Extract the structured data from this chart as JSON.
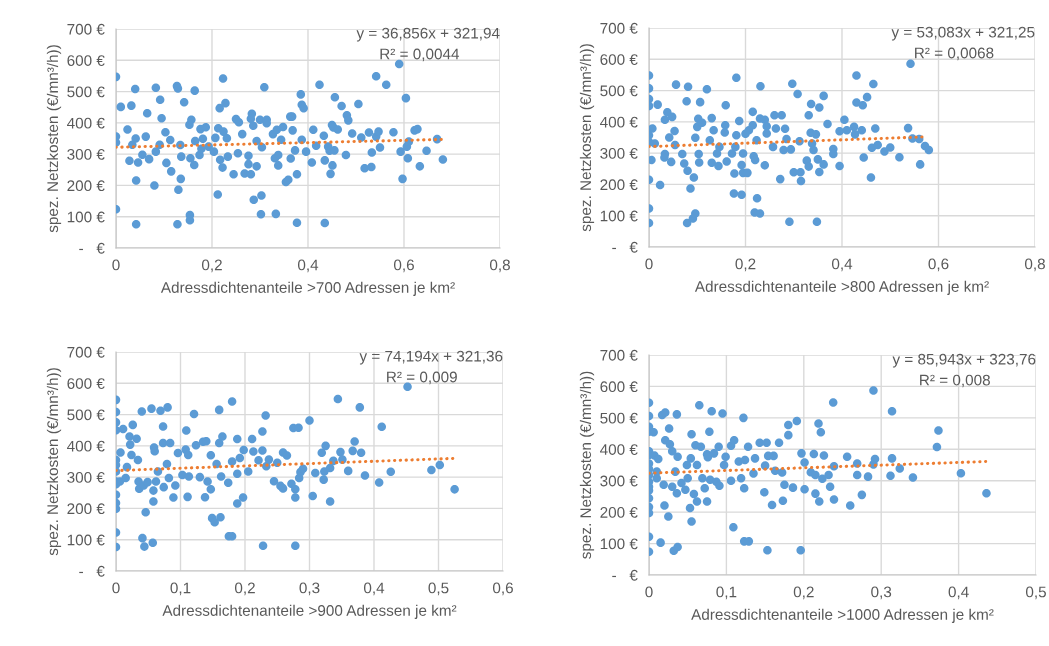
{
  "chart_data": [
    {
      "type": "scatter",
      "xlabel": "Adressdichtenanteile >700 Adressen je km²",
      "ylabel": "spez. Netzkosten (€/mn³/h))",
      "grid": true,
      "xlim": [
        0,
        0.8
      ],
      "xticks": [
        0,
        {
          "value": 0.2,
          "label": "0,2"
        },
        {
          "value": 0.4,
          "label": "0,4"
        },
        {
          "value": 0.6,
          "label": "0,6"
        },
        {
          "value": 0.8,
          "label": "0,8"
        }
      ],
      "ylim": [
        0,
        700
      ],
      "yticks": [
        {
          "value": 0,
          "label": "-   €"
        },
        {
          "value": 100,
          "label": "100 €"
        },
        {
          "value": 200,
          "label": "200 €"
        },
        {
          "value": 300,
          "label": "300 €"
        },
        {
          "value": 400,
          "label": "400 €"
        },
        {
          "value": 500,
          "label": "500 €"
        },
        {
          "value": 600,
          "label": "600 €"
        },
        {
          "value": 700,
          "label": "700 €"
        }
      ],
      "annotations": [
        "y = 36,856x + 321,94",
        "R² = 0,0044"
      ],
      "series": [
        {
          "color": "#5b9bd5",
          "marker": "circle",
          "x": [
            0,
            0,
            0,
            0,
            0.01,
            0.024,
            0.032,
            0.034,
            0.04,
            0.041,
            0.042,
            0.042,
            0.028,
            0.046,
            0.055,
            0.062,
            0.065,
            0.069,
            0.083,
            0.08,
            0.083,
            0.092,
            0.091,
            0.095,
            0.103,
            0.105,
            0.113,
            0.115,
            0.127,
            0.129,
            0.128,
            0.13,
            0.134,
            0.135,
            0.136,
            0.142,
            0.153,
            0.157,
            0.154,
            0.154,
            0.155,
            0.163,
            0.164,
            0.165,
            0.174,
            0.176,
            0.181,
            0.187,
            0.178,
            0.193,
            0.207,
            0.204,
            0.212,
            0.213,
            0.216,
            0.223,
            0.228,
            0.224,
            0.231,
            0.233,
            0.222,
            0.217,
            0.245,
            0.25,
            0.256,
            0.254,
            0.263,
            0.268,
            0.276,
            0.276,
            0.281,
            0.283,
            0.281,
            0.286,
            0.287,
            0.293,
            0.293,
            0.3,
            0.302,
            0.303,
            0.304,
            0.309,
            0.314,
            0.314,
            0.327,
            0.331,
            0.335,
            0.333,
            0.338,
            0.338,
            0.344,
            0.348,
            0.354,
            0.359,
            0.363,
            0.367,
            0.364,
            0.368,
            0.373,
            0.377,
            0.377,
            0.385,
            0.387,
            0.391,
            0.387,
            0.396,
            0.408,
            0.411,
            0.417,
            0.424,
            0.433,
            0.435,
            0.435,
            0.442,
            0.445,
            0.447,
            0.45,
            0.453,
            0.455,
            0.451,
            0.456,
            0.462,
            0.47,
            0.481,
            0.484,
            0.479,
            0.492,
            0.505,
            0.511,
            0.518,
            0.527,
            0.532,
            0.533,
            0.542,
            0.542,
            0.547,
            0.55,
            0.563,
            0.578,
            0.59,
            0.593,
            0.597,
            0.604,
            0.606,
            0.61,
            0.608,
            0.622,
            0.628,
            0.633,
            0.647,
            0.669,
            0.681
          ],
          "values": [
            547,
            356,
            337,
            124,
            451,
            379,
            455,
            330,
            508,
            350,
            216,
            76,
            279,
            273,
            298,
            356,
            431,
            284,
            512,
            200,
            308,
            474,
            330,
            415,
            370,
            272,
            345,
            245,
            518,
            510,
            76,
            186,
            329,
            221,
            292,
            466,
            394,
            410,
            105,
            89,
            287,
            265,
            503,
            342,
            297,
            380,
            349,
            386,
            317,
            324,
            352,
            308,
            171,
            383,
            447,
            542,
            463,
            372,
            351,
            292,
            257,
            282,
            236,
            412,
            402,
            303,
            364,
            238,
            295,
            268,
            236,
            429,
            413,
            391,
            154,
            342,
            261,
            410,
            108,
            168,
            322,
            514,
            410,
            399,
            364,
            287,
            378,
            109,
            264,
            297,
            346,
            387,
            211,
            218,
            420,
            420,
            286,
            376,
            312,
            236,
            81,
            491,
            458,
            447,
            346,
            308,
            273,
            378,
            327,
            522,
            359,
            280,
            80,
            324,
            311,
            237,
            393,
            385,
            312,
            264,
            482,
            379,
            454,
            424,
            408,
            297,
            366,
            460,
            353,
            255,
            369,
            259,
            305,
            549,
            356,
            372,
            321,
            522,
            370,
            588,
            308,
            221,
            479,
            324,
            340,
            287,
            376,
            380,
            261,
            311,
            348,
            283
          ]
        },
        {
          "type": "line",
          "color": "#ed7d31",
          "marker": "none",
          "line_style": "dotted",
          "x": [
            0,
            0.68
          ],
          "values": [
            322,
            347
          ]
        }
      ]
    },
    {
      "type": "scatter",
      "xlabel": "Adressdichtenanteile >800 Adressen je km²",
      "ylabel": "spez. Netzkosten (€/mn³/h))",
      "grid": true,
      "xlim": [
        0,
        0.8
      ],
      "xticks": [
        0,
        {
          "value": 0.2,
          "label": "0,2"
        },
        {
          "value": 0.4,
          "label": "0,4"
        },
        {
          "value": 0.6,
          "label": "0,6"
        },
        {
          "value": 0.8,
          "label": "0,8"
        }
      ],
      "ylim": [
        0,
        700
      ],
      "yticks": [
        {
          "value": 0,
          "label": "-   €"
        },
        {
          "value": 100,
          "label": "100 €"
        },
        {
          "value": 200,
          "label": "200 €"
        },
        {
          "value": 300,
          "label": "300 €"
        },
        {
          "value": 400,
          "label": "400 €"
        },
        {
          "value": 500,
          "label": "500 €"
        },
        {
          "value": 600,
          "label": "600 €"
        },
        {
          "value": 700,
          "label": "700 €"
        }
      ],
      "annotations": [
        "y = 53,083x + 321,25",
        "R² = 0,0068"
      ],
      "series": [
        {
          "color": "#5b9bd5",
          "marker": "circle",
          "x": [
            0,
            0,
            0,
            0,
            0,
            0,
            0,
            0,
            0,
            0.005,
            0.007,
            0.018,
            0.023,
            0.012,
            0.033,
            0.038,
            0.042,
            0.048,
            0.053,
            0.056,
            0.033,
            0.032,
            0.046,
            0.054,
            0.069,
            0.073,
            0.078,
            0.081,
            0.08,
            0.079,
            0.086,
            0.091,
            0.096,
            0.093,
            0.096,
            0.1,
            0.102,
            0.106,
            0.11,
            0.104,
            0.103,
            0.12,
            0.126,
            0.13,
            0.134,
            0.13,
            0.141,
            0.144,
            0.146,
            0.158,
            0.157,
            0.159,
            0.161,
            0.172,
            0.177,
            0.176,
            0.179,
            0.181,
            0.181,
            0.187,
            0.192,
            0.192,
            0.195,
            0.204,
            0.195,
            0.2,
            0.207,
            0.215,
            0.215,
            0.217,
            0.22,
            0.223,
            0.224,
            0.219,
            0.23,
            0.23,
            0.231,
            0.24,
            0.244,
            0.244,
            0.24,
            0.257,
            0.26,
            0.263,
            0.272,
            0.275,
            0.279,
            0.282,
            0.285,
            0.294,
            0.291,
            0.297,
            0.3,
            0.308,
            0.312,
            0.314,
            0.315,
            0.327,
            0.331,
            0.331,
            0.336,
            0.335,
            0.338,
            0.341,
            0.346,
            0.348,
            0.35,
            0.353,
            0.353,
            0.362,
            0.362,
            0.37,
            0.382,
            0.382,
            0.395,
            0.395,
            0.405,
            0.41,
            0.425,
            0.427,
            0.43,
            0.43,
            0.441,
            0.443,
            0.445,
            0.452,
            0.46,
            0.462,
            0.465,
            0.469,
            0.474,
            0.488,
            0.5,
            0.519,
            0.537,
            0.542,
            0.546,
            0.562,
            0.56,
            0.572,
            0.58
          ],
          "values": [
            548,
            507,
            473,
            451,
            357,
            336,
            123,
            77,
            215,
            278,
            379,
            455,
            198,
            331,
            407,
            431,
            350,
            416,
            371,
            519,
            297,
            286,
            272,
            326,
            297,
            267,
            466,
            512,
            244,
            77,
            187,
            91,
            107,
            222,
            349,
            384,
            410,
            463,
            397,
            270,
            297,
            504,
            341,
            412,
            373,
            269,
            299,
            259,
            320,
            389,
            366,
            453,
            273,
            299,
            235,
            171,
            320,
            541,
            357,
            403,
            167,
            262,
            237,
            237,
            299,
            362,
            373,
            432,
            389,
            290,
            278,
            341,
            156,
            110,
            107,
            411,
            514,
            407,
            386,
            363,
            261,
            320,
            421,
            379,
            217,
            421,
            310,
            378,
            345,
            312,
            81,
            522,
            239,
            489,
            338,
            239,
            211,
            276,
            257,
            421,
            457,
            365,
            331,
            310,
            360,
            81,
            280,
            446,
            240,
            483,
            264,
            393,
            313,
            297,
            370,
            259,
            407,
            373,
            384,
            360,
            548,
            462,
            373,
            453,
            286,
            479,
            222,
            317,
            521,
            379,
            326,
            305,
            318,
            287,
            380,
            586,
            347,
            264,
            345,
            323,
            310
          ]
        },
        {
          "type": "line",
          "color": "#ed7d31",
          "marker": "none",
          "line_style": "dotted",
          "x": [
            0,
            0.575
          ],
          "values": [
            321,
            352
          ]
        }
      ]
    },
    {
      "type": "scatter",
      "xlabel": "Adressdichtenanteile >900 Adressen je km²",
      "ylabel": "spez. Netzkosten (€/mn³/h))",
      "grid": true,
      "xlim": [
        0,
        0.6
      ],
      "xticks": [
        0,
        {
          "value": 0.1,
          "label": "0,1"
        },
        {
          "value": 0.2,
          "label": "0,2"
        },
        {
          "value": 0.3,
          "label": "0,3"
        },
        {
          "value": 0.4,
          "label": "0,4"
        },
        {
          "value": 0.5,
          "label": "0,5"
        },
        {
          "value": 0.6,
          "label": "0,6"
        }
      ],
      "ylim": [
        0,
        700
      ],
      "yticks": [
        {
          "value": 0,
          "label": "-   €"
        },
        {
          "value": 100,
          "label": "100 €"
        },
        {
          "value": 200,
          "label": "200 €"
        },
        {
          "value": 300,
          "label": "300 €"
        },
        {
          "value": 400,
          "label": "400 €"
        },
        {
          "value": 500,
          "label": "500 €"
        },
        {
          "value": 600,
          "label": "600 €"
        },
        {
          "value": 700,
          "label": "700 €"
        }
      ],
      "annotations": [
        "y = 74,194x + 321,36",
        "R² = 0,009"
      ],
      "series": [
        {
          "color": "#5b9bd5",
          "marker": "circle",
          "x": [
            0,
            0,
            0,
            0,
            0,
            0,
            0,
            0,
            0,
            0,
            0,
            0,
            0,
            0,
            0.006,
            0.007,
            0.011,
            0.015,
            0.017,
            0.021,
            0.022,
            0.024,
            0.026,
            0.032,
            0.034,
            0.036,
            0.035,
            0.04,
            0.041,
            0.044,
            0.046,
            0.043,
            0.049,
            0.055,
            0.057,
            0.059,
            0.058,
            0.058,
            0.06,
            0.062,
            0.065,
            0.069,
            0.073,
            0.073,
            0.074,
            0.08,
            0.084,
            0.079,
            0.082,
            0.089,
            0.092,
            0.096,
            0.103,
            0.109,
            0.108,
            0.112,
            0.111,
            0.113,
            0.121,
            0.124,
            0.13,
            0.135,
            0.14,
            0.138,
            0.142,
            0.147,
            0.147,
            0.149,
            0.153,
            0.156,
            0.16,
            0.16,
            0.163,
            0.162,
            0.165,
            0.174,
            0.175,
            0.18,
            0.18,
            0.18,
            0.188,
            0.188,
            0.188,
            0.192,
            0.197,
            0.198,
            0.205,
            0.211,
            0.213,
            0.221,
            0.227,
            0.227,
            0.228,
            0.232,
            0.233,
            0.237,
            0.245,
            0.25,
            0.255,
            0.259,
            0.259,
            0.265,
            0.272,
            0.275,
            0.278,
            0.278,
            0.278,
            0.283,
            0.284,
            0.286,
            0.3,
            0.29,
            0.305,
            0.309,
            0.319,
            0.322,
            0.325,
            0.323,
            0.332,
            0.332,
            0.337,
            0.344,
            0.348,
            0.351,
            0.36,
            0.367,
            0.37,
            0.378,
            0.38,
            0.386,
            0.408,
            0.412,
            0.426,
            0.452,
            0.489,
            0.502,
            0.525
          ],
          "values": [
            547,
            508,
            475,
            450,
            355,
            339,
            318,
            286,
            277,
            244,
            217,
            199,
            123,
            77,
            286,
            379,
            454,
            297,
            332,
            430,
            404,
            371,
            467,
            423,
            355,
            263,
            286,
            510,
            105,
            78,
            188,
            273,
            284,
            519,
            90,
            395,
            222,
            257,
            383,
            286,
            318,
            512,
            462,
            409,
            268,
            523,
            409,
            342,
            297,
            235,
            273,
            377,
            307,
            449,
            388,
            371,
            237,
            302,
            502,
            402,
            300,
            413,
            415,
            236,
            286,
            370,
            261,
            169,
            156,
            342,
            515,
            409,
            302,
            172,
            430,
            282,
            111,
            542,
            111,
            350,
            422,
            311,
            216,
            361,
            235,
            387,
            318,
            422,
            382,
            354,
            446,
            385,
            81,
            497,
            335,
            356,
            287,
            346,
            272,
            264,
            379,
            369,
            279,
            457,
            235,
            81,
            261,
            458,
            297,
            316,
            481,
            327,
            240,
            313,
            378,
            292,
            400,
            318,
            329,
            222,
            352,
            550,
            380,
            356,
            320,
            384,
            414,
            523,
            378,
            305,
            283,
            461,
            317,
            589,
            323,
            339,
            261
          ]
        },
        {
          "type": "line",
          "color": "#ed7d31",
          "marker": "none",
          "line_style": "dotted",
          "x": [
            0,
            0.525
          ],
          "values": [
            321,
            360
          ]
        }
      ]
    },
    {
      "type": "scatter",
      "xlabel": "Adressdichtenanteile >1000 Adressen je km²",
      "ylabel": "spez. Netzkosten (€/mn³/h))",
      "grid": true,
      "xlim": [
        0,
        0.5
      ],
      "xticks": [
        0,
        {
          "value": 0.1,
          "label": "0,1"
        },
        {
          "value": 0.2,
          "label": "0,2"
        },
        {
          "value": 0.3,
          "label": "0,3"
        },
        {
          "value": 0.4,
          "label": "0,4"
        },
        {
          "value": 0.5,
          "label": "0,5"
        }
      ],
      "ylim": [
        0,
        700
      ],
      "yticks": [
        {
          "value": 0,
          "label": "-   €"
        },
        {
          "value": 100,
          "label": "100 €"
        },
        {
          "value": 200,
          "label": "200 €"
        },
        {
          "value": 300,
          "label": "300 €"
        },
        {
          "value": 400,
          "label": "400 €"
        },
        {
          "value": 500,
          "label": "500 €"
        },
        {
          "value": 600,
          "label": "600 €"
        },
        {
          "value": 700,
          "label": "700 €"
        }
      ],
      "annotations": [
        "y = 85,943x + 323,76",
        "R² = 0,008"
      ],
      "series": [
        {
          "color": "#5b9bd5",
          "marker": "circle",
          "x": [
            0,
            0,
            0,
            0,
            0,
            0,
            0,
            0,
            0,
            0,
            0,
            0,
            0,
            0,
            0,
            0,
            0,
            0.006,
            0.007,
            0.01,
            0.012,
            0.01,
            0.015,
            0.017,
            0.021,
            0.021,
            0.02,
            0.019,
            0.026,
            0.025,
            0.027,
            0.03,
            0.03,
            0.032,
            0.034,
            0.036,
            0.037,
            0.036,
            0.037,
            0.042,
            0.047,
            0.049,
            0.05,
            0.053,
            0.054,
            0.055,
            0.055,
            0.058,
            0.062,
            0.062,
            0.06,
            0.065,
            0.067,
            0.069,
            0.072,
            0.075,
            0.075,
            0.076,
            0.078,
            0.079,
            0.081,
            0.084,
            0.087,
            0.09,
            0.091,
            0.095,
            0.097,
            0.099,
            0.106,
            0.106,
            0.109,
            0.11,
            0.116,
            0.119,
            0.122,
            0.123,
            0.123,
            0.129,
            0.124,
            0.128,
            0.135,
            0.137,
            0.143,
            0.149,
            0.152,
            0.15,
            0.153,
            0.154,
            0.159,
            0.161,
            0.163,
            0.168,
            0.172,
            0.173,
            0.175,
            0.18,
            0.18,
            0.186,
            0.191,
            0.196,
            0.197,
            0.201,
            0.201,
            0.209,
            0.213,
            0.215,
            0.215,
            0.219,
            0.22,
            0.222,
            0.224,
            0.226,
            0.232,
            0.234,
            0.238,
            0.239,
            0.239,
            0.256,
            0.26,
            0.269,
            0.269,
            0.275,
            0.283,
            0.29,
            0.29,
            0.292,
            0.312,
            0.314,
            0.314,
            0.324,
            0.341,
            0.372,
            0.374,
            0.403,
            0.436
          ],
          "values": [
            548,
            506,
            472,
            456,
            394,
            382,
            355,
            337,
            318,
            297,
            281,
            269,
            244,
            216,
            197,
            122,
            74,
            454,
            380,
            329,
            369,
            308,
            103,
            509,
            517,
            429,
            221,
            287,
            466,
            186,
            416,
            394,
            281,
            77,
            329,
            511,
            376,
            260,
            89,
            293,
            271,
            350,
            308,
            213,
            371,
            448,
            170,
            258,
            350,
            234,
            413,
            540,
            408,
            308,
            276,
            384,
            234,
            375,
            456,
            303,
            521,
            387,
            297,
            408,
            284,
            514,
            350,
            376,
            300,
            411,
            152,
            429,
            361,
            308,
            500,
            276,
            107,
            107,
            366,
            408,
            323,
            371,
            421,
            263,
            421,
            348,
            79,
            379,
            223,
            379,
            332,
            421,
            326,
            236,
            287,
            477,
            445,
            278,
            490,
            79,
            387,
            358,
            273,
            327,
            385,
            259,
            318,
            482,
            234,
            454,
            306,
            380,
            318,
            281,
            549,
            346,
            240,
            376,
            221,
            355,
            318,
            255,
            313,
            587,
            352,
            369,
            316,
            521,
            371,
            339,
            310,
            407,
            460,
            324,
            260
          ]
        },
        {
          "type": "line",
          "color": "#ed7d31",
          "marker": "none",
          "line_style": "dotted",
          "x": [
            0,
            0.435
          ],
          "values": [
            324,
            361
          ]
        }
      ]
    }
  ]
}
